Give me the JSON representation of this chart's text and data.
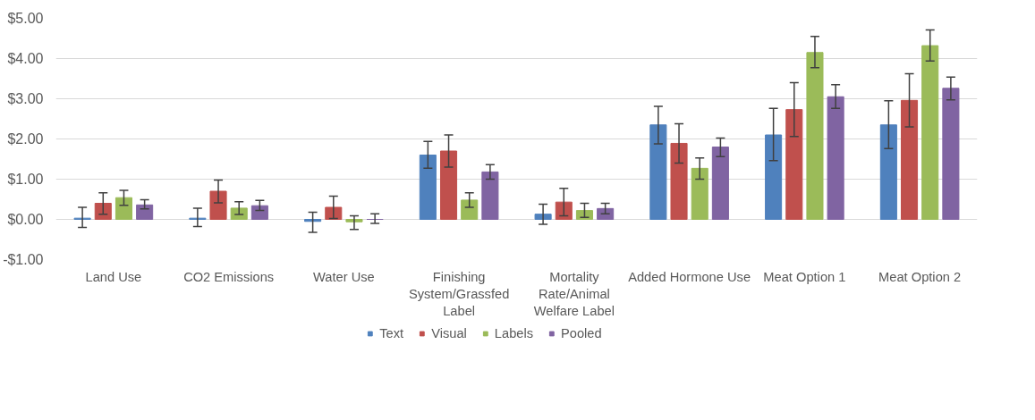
{
  "chart_data": {
    "type": "bar",
    "categories": [
      "Land Use",
      "CO2 Emissions",
      "Water Use",
      "Finishing System/Grassfed Label",
      "Mortality Rate/Animal Welfare Label",
      "Added Hormone Use",
      "Meat Option 1",
      "Meat Option 2"
    ],
    "series": [
      {
        "name": "Text",
        "color": "#4f81bd",
        "values": [
          0.03,
          0.03,
          -0.05,
          1.6,
          0.13,
          2.35,
          2.1,
          2.35
        ],
        "errors": [
          [
            -0.2,
            0.3
          ],
          [
            -0.18,
            0.28
          ],
          [
            -0.32,
            0.18
          ],
          [
            1.27,
            1.94
          ],
          [
            -0.12,
            0.38
          ],
          [
            1.88,
            2.81
          ],
          [
            1.46,
            2.76
          ],
          [
            1.76,
            2.95
          ]
        ]
      },
      {
        "name": "Visual",
        "color": "#c0504d",
        "values": [
          0.4,
          0.7,
          0.3,
          1.7,
          0.43,
          1.89,
          2.73,
          2.96
        ],
        "errors": [
          [
            0.13,
            0.66
          ],
          [
            0.41,
            0.98
          ],
          [
            0.02,
            0.58
          ],
          [
            1.3,
            2.1
          ],
          [
            0.09,
            0.77
          ],
          [
            1.4,
            2.38
          ],
          [
            2.06,
            3.4
          ],
          [
            2.3,
            3.62
          ]
        ]
      },
      {
        "name": "Labels",
        "color": "#9bbb59",
        "values": [
          0.54,
          0.28,
          -0.06,
          0.48,
          0.22,
          1.27,
          4.15,
          4.32
        ],
        "errors": [
          [
            0.35,
            0.72
          ],
          [
            0.12,
            0.44
          ],
          [
            -0.25,
            0.09
          ],
          [
            0.3,
            0.66
          ],
          [
            0.05,
            0.4
          ],
          [
            1.0,
            1.53
          ],
          [
            3.77,
            4.55
          ],
          [
            3.94,
            4.71
          ]
        ]
      },
      {
        "name": "Pooled",
        "color": "#8064a2",
        "values": [
          0.36,
          0.34,
          0.0,
          1.18,
          0.27,
          1.8,
          3.05,
          3.26
        ],
        "errors": [
          [
            0.26,
            0.49
          ],
          [
            0.22,
            0.47
          ],
          [
            -0.1,
            0.14
          ],
          [
            1.0,
            1.36
          ],
          [
            0.14,
            0.4
          ],
          [
            1.56,
            2.02
          ],
          [
            2.76,
            3.35
          ],
          [
            2.97,
            3.54
          ]
        ]
      }
    ],
    "ylim": [
      -1,
      5
    ],
    "yticks": [
      {
        "value": -1,
        "label": "-$1.00"
      },
      {
        "value": 0,
        "label": "$0.00"
      },
      {
        "value": 1,
        "label": "$1.00"
      },
      {
        "value": 2,
        "label": "$2.00"
      },
      {
        "value": 3,
        "label": "$3.00"
      },
      {
        "value": 4,
        "label": "$4.00"
      },
      {
        "value": 5,
        "label": "$5.00"
      }
    ],
    "grid": "y",
    "legend": "bottom"
  }
}
